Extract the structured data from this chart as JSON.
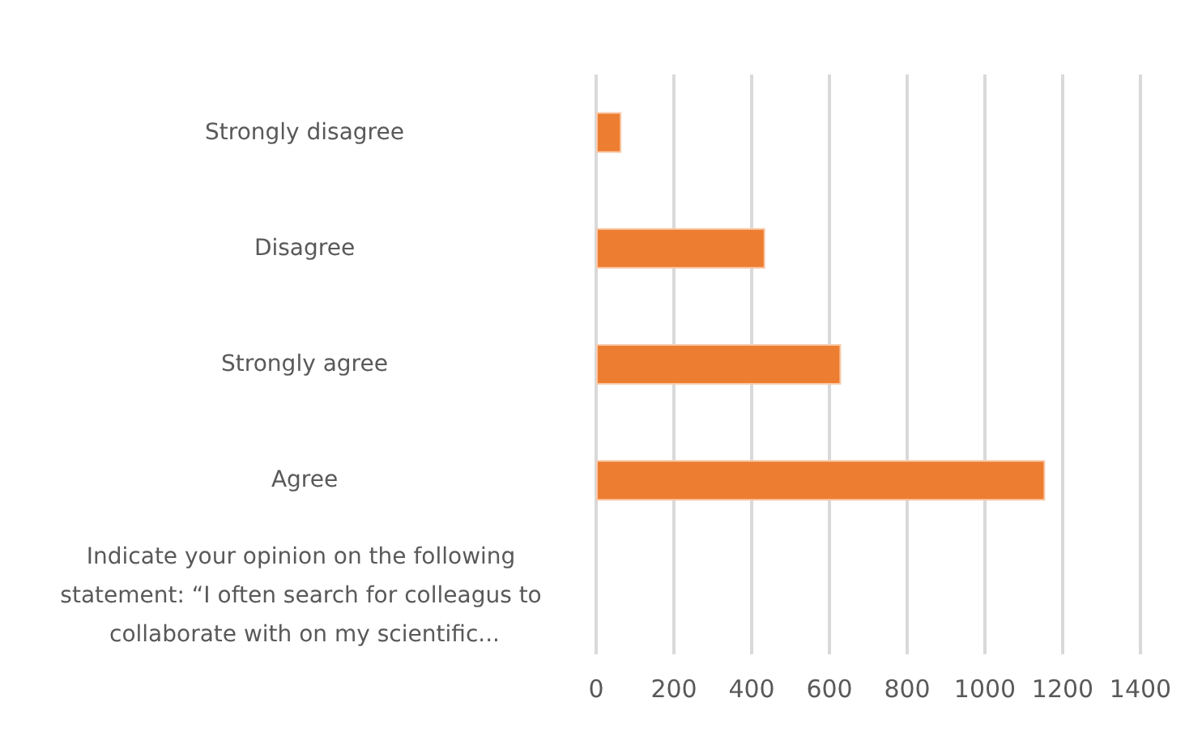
{
  "chart_data": {
    "type": "bar",
    "orientation": "horizontal",
    "categories": [
      "Strongly disagree",
      "Disagree",
      "Strongly agree",
      "Agree",
      "Indicate your opinion on the following statement: “I often search for colleagus to collaborate with on my scientific..."
    ],
    "values": [
      65,
      435,
      630,
      1155,
      null
    ],
    "color": "#ed7d31",
    "xlim": [
      0,
      1400
    ],
    "xticks": [
      0,
      200,
      400,
      600,
      800,
      1000,
      1200,
      1400
    ],
    "grid": "x"
  }
}
